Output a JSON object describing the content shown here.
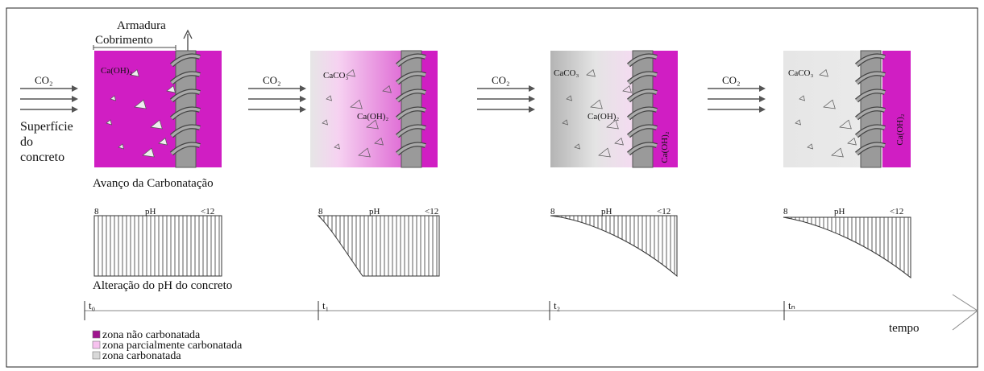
{
  "header": {
    "armadura": "Armadura",
    "cobrimento": "Cobrimento"
  },
  "surface_label": [
    "Superfície",
    "do",
    "concreto"
  ],
  "section_titles": {
    "advance": "Avanço da Carbonatação",
    "ph_change": "Alteração do pH do concreto"
  },
  "stages": [
    {
      "co2": "CO₂",
      "texts": [
        "Ca(OH)₂"
      ],
      "ph": {
        "min": "8",
        "label": "pH",
        "max": "<12"
      },
      "time": "t₀"
    },
    {
      "co2": "CO₂",
      "texts": [
        "CaCO₃",
        "Ca(OH)₂"
      ],
      "ph": {
        "min": "8",
        "label": "pH",
        "max": "<12"
      },
      "time": "t₁"
    },
    {
      "co2": "CO₂",
      "texts": [
        "CaCO₃",
        "Ca(OH)₂",
        "Ca(OH)₂"
      ],
      "ph": {
        "min": "8",
        "label": "pH",
        "max": "<12"
      },
      "time": "t₂"
    },
    {
      "co2": "CO₂",
      "texts": [
        "CaCO₃",
        "Ca(OH)₂"
      ],
      "ph": {
        "min": "8",
        "label": "pH",
        "max": "<12"
      },
      "time": "tₙ"
    }
  ],
  "time_axis": "tempo",
  "legend": [
    "zona não carbonatada",
    "zona parcialmente carbonatada",
    "zona carbonatada"
  ]
}
